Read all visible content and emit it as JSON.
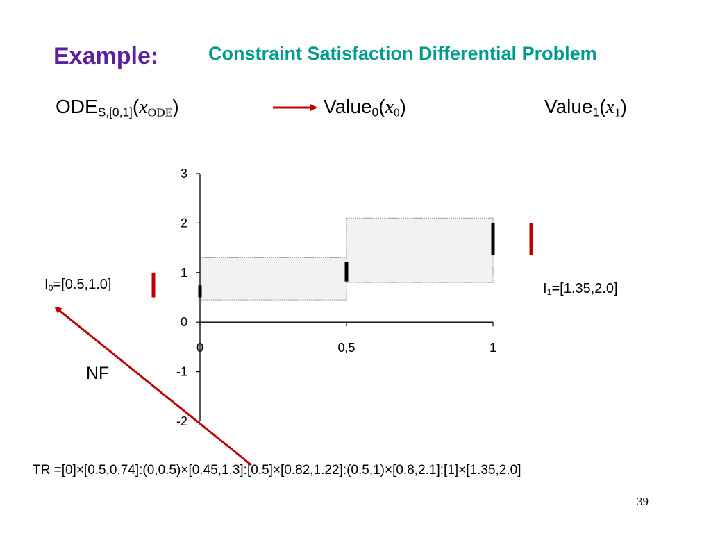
{
  "heading": {
    "example": "Example:",
    "title": "Constraint Satisfaction Differential Problem",
    "example_color": "#5c1f9e",
    "title_color": "#009a8f"
  },
  "ode": {
    "prefix": "ODE",
    "subscript": "S,[0,1]",
    "open": "(",
    "var": "x",
    "var_sub": "ODE",
    "close": ")"
  },
  "value0": {
    "prefix": "Value",
    "subscript": "0",
    "open": "(",
    "var": "x",
    "var_sub": "0",
    "close": ")"
  },
  "value1": {
    "prefix": "Value",
    "subscript": "1",
    "open": "(",
    "var": "x",
    "var_sub": "1",
    "close": ")"
  },
  "i0": {
    "prefix": "I",
    "subscript": "0",
    "rest": "=[0.5,1.0]"
  },
  "i1": {
    "prefix": "I",
    "subscript": "1",
    "rest": "=[1.35,2.0]"
  },
  "nf": "NF",
  "tr": "TR =[0]×[0.5,0.74]:(0,0.5)×[0.45,1.3]:[0.5]×[0.82,1.22]:(0.5,1)×[0.8,2.1]:[1]×[1.35,2.0]",
  "page_number": "39",
  "colors": {
    "arrow": "#c00000",
    "box_fill": "#f2f2f2",
    "box_border": "#999999"
  },
  "chart_data": {
    "type": "diagram",
    "x_ticks": [
      "0",
      "0,5",
      "1"
    ],
    "x_tick_values": [
      0,
      0.5,
      1
    ],
    "y_ticks": [
      "3",
      "2",
      "1",
      "0",
      "-1",
      "-2"
    ],
    "y_tick_values": [
      3,
      2,
      1,
      0,
      -1,
      -2
    ],
    "xlim": [
      0,
      1
    ],
    "ylim": [
      -2,
      3
    ],
    "boxes": [
      {
        "x": [
          0,
          0.5
        ],
        "y": [
          0.45,
          1.3
        ]
      },
      {
        "x": [
          0.5,
          1
        ],
        "y": [
          0.8,
          2.1
        ]
      }
    ],
    "bars": [
      {
        "x": 0,
        "y": [
          0.5,
          0.74
        ]
      },
      {
        "x": 0.5,
        "y": [
          0.82,
          1.22
        ]
      },
      {
        "x": 1,
        "y": [
          1.35,
          2.0
        ]
      }
    ],
    "interval_markers": [
      {
        "name": "I0",
        "y": [
          0.5,
          1.0
        ]
      },
      {
        "name": "I1",
        "y": [
          1.35,
          2.0
        ]
      }
    ]
  }
}
